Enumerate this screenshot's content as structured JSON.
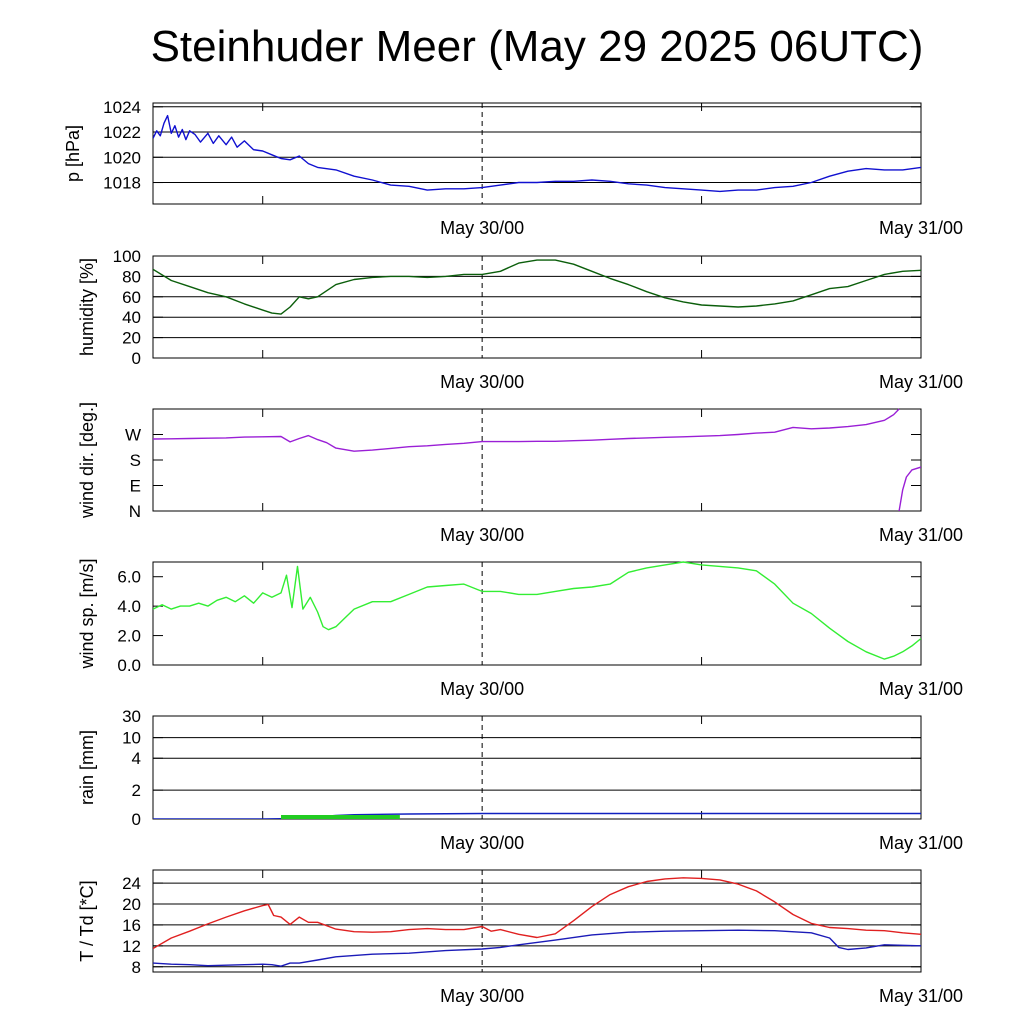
{
  "title": "Steinhuder Meer (May 29 2025 06UTC)",
  "colors": {
    "pressure": "#1010d0",
    "humidity": "#0b5e0b",
    "wind_dir": "#9a1fd6",
    "wind_speed": "#33ee33",
    "rain_total": "#1020c0",
    "rain_rate": "#22cc22",
    "temperature": "#e02020",
    "dewpoint": "#1b1bb8"
  },
  "chart_data": [
    {
      "type": "line",
      "id": "pressure",
      "ylabel": "p [hPa]",
      "x_range_hours": [
        0,
        42
      ],
      "ylim": [
        1016.3,
        1024.3
      ],
      "yticks": [
        1018,
        1020,
        1022,
        1024
      ],
      "ytick_labels": [
        "1018",
        "1020",
        "1022",
        "1024"
      ],
      "grid": "horizontal",
      "xtick_labels": [
        "May 30/00",
        "May 31/00"
      ],
      "series": [
        {
          "color_key": "pressure",
          "x": [
            0,
            0.2,
            0.4,
            0.6,
            0.8,
            1.0,
            1.2,
            1.4,
            1.6,
            1.8,
            2.0,
            2.3,
            2.6,
            3.0,
            3.3,
            3.6,
            4.0,
            4.3,
            4.6,
            5.0,
            5.5,
            6.0,
            6.5,
            7.0,
            7.5,
            8.0,
            8.5,
            9.0,
            10,
            11,
            12,
            13,
            14,
            15,
            16,
            17,
            18,
            19,
            20,
            21,
            22,
            23,
            24,
            25,
            26,
            27,
            28,
            29,
            30,
            31,
            32,
            33,
            34,
            35,
            36,
            37,
            38,
            39,
            40,
            41,
            42
          ],
          "y": [
            1021.5,
            1022.1,
            1021.7,
            1022.7,
            1023.3,
            1021.9,
            1022.5,
            1021.6,
            1022.2,
            1021.4,
            1022.1,
            1021.8,
            1021.2,
            1021.9,
            1021.1,
            1021.7,
            1021.0,
            1021.6,
            1020.8,
            1021.3,
            1020.6,
            1020.5,
            1020.2,
            1019.9,
            1019.8,
            1020.1,
            1019.5,
            1019.2,
            1019.0,
            1018.5,
            1018.2,
            1017.8,
            1017.7,
            1017.4,
            1017.5,
            1017.5,
            1017.6,
            1017.8,
            1018.0,
            1018.0,
            1018.1,
            1018.1,
            1018.2,
            1018.1,
            1017.9,
            1017.8,
            1017.6,
            1017.5,
            1017.4,
            1017.3,
            1017.4,
            1017.4,
            1017.6,
            1017.7,
            1018.0,
            1018.5,
            1018.9,
            1019.1,
            1019.0,
            1019.0,
            1019.2
          ]
        }
      ]
    },
    {
      "type": "line",
      "id": "humidity",
      "ylabel": "humidity [%]",
      "x_range_hours": [
        0,
        42
      ],
      "ylim": [
        0,
        100
      ],
      "yticks": [
        0,
        20,
        40,
        60,
        80,
        100
      ],
      "ytick_labels": [
        "0",
        "20",
        "40",
        "60",
        "80",
        "100"
      ],
      "grid": "horizontal",
      "xtick_labels": [
        "May 30/00",
        "May 31/00"
      ],
      "series": [
        {
          "color_key": "humidity",
          "x": [
            0,
            1,
            2,
            3,
            4,
            5,
            6,
            6.5,
            7.0,
            7.5,
            8.0,
            8.5,
            9.0,
            10,
            11,
            12,
            13,
            14,
            15,
            16,
            17,
            18,
            19,
            20,
            21,
            22,
            23,
            24,
            25,
            26,
            27,
            28,
            29,
            30,
            31,
            32,
            33,
            34,
            35,
            36,
            37,
            38,
            39,
            40,
            41,
            42
          ],
          "y": [
            87,
            76,
            70,
            64,
            60,
            53,
            47,
            44,
            43,
            50,
            60,
            58,
            60,
            72,
            77,
            79,
            80,
            80,
            79,
            80,
            82,
            82,
            85,
            93,
            96,
            96,
            92,
            85,
            78,
            72,
            65,
            59,
            55,
            52,
            51,
            50,
            51,
            53,
            56,
            62,
            68,
            70,
            76,
            82,
            85,
            86
          ]
        }
      ]
    },
    {
      "type": "line",
      "id": "wind_direction",
      "ylabel": "wind dir. [deg.]",
      "x_range_hours": [
        0,
        42
      ],
      "ylim": [
        0,
        360
      ],
      "yticks": [
        0,
        90,
        180,
        270
      ],
      "ytick_labels": [
        "N",
        "E",
        "S",
        "W"
      ],
      "grid": "none",
      "xtick_labels": [
        "May 30/00",
        "May 31/00"
      ],
      "series": [
        {
          "color_key": "wind_dir",
          "x": [
            0,
            1,
            2,
            3,
            4,
            5,
            6,
            7,
            7.5,
            8,
            8.5,
            9,
            9.5,
            10,
            11,
            12,
            13,
            14,
            15,
            16,
            17,
            18,
            19,
            20,
            21,
            22,
            23,
            24,
            25,
            26,
            27,
            28,
            29,
            30,
            31,
            32,
            33,
            34,
            35,
            36,
            37,
            38,
            39,
            40,
            40.5,
            40.8
          ],
          "y": [
            254,
            255,
            256,
            257,
            258,
            261,
            262,
            263,
            244,
            256,
            266,
            252,
            241,
            222,
            211,
            215,
            221,
            227,
            230,
            235,
            239,
            245,
            245,
            245,
            246,
            246,
            248,
            250,
            253,
            256,
            258,
            260,
            262,
            264,
            266,
            270,
            275,
            278,
            295,
            290,
            293,
            298,
            305,
            320,
            340,
            360
          ]
        },
        {
          "color_key": "wind_dir",
          "x": [
            40.8,
            41.0,
            41.2,
            41.5,
            42
          ],
          "y": [
            0,
            75,
            120,
            145,
            155
          ]
        }
      ]
    },
    {
      "type": "line",
      "id": "wind_speed",
      "ylabel": "wind sp. [m/s]",
      "x_range_hours": [
        0,
        42
      ],
      "ylim": [
        0,
        7.0
      ],
      "yticks": [
        0,
        2,
        4,
        6
      ],
      "ytick_labels": [
        "0.0",
        "2.0",
        "4.0",
        "6.0"
      ],
      "grid": "none",
      "xtick_labels": [
        "May 30/00",
        "May 31/00"
      ],
      "series": [
        {
          "color_key": "wind_speed",
          "x": [
            0,
            0.5,
            1,
            1.5,
            2,
            2.5,
            3,
            3.5,
            4,
            4.5,
            5,
            5.5,
            6,
            6.5,
            7,
            7.3,
            7.6,
            7.9,
            8.2,
            8.6,
            9,
            9.3,
            9.6,
            10,
            10.5,
            11,
            12,
            13,
            14,
            15,
            16,
            17,
            18,
            19,
            20,
            21,
            22,
            23,
            24,
            25,
            26,
            27,
            28,
            29,
            30,
            31,
            32,
            33,
            34,
            35,
            36,
            37,
            38,
            39,
            40,
            40.5,
            41,
            41.5,
            42
          ],
          "y": [
            3.8,
            4.1,
            3.8,
            4.0,
            4.0,
            4.2,
            4.0,
            4.4,
            4.6,
            4.3,
            4.7,
            4.2,
            4.9,
            4.6,
            4.9,
            6.1,
            3.9,
            6.7,
            3.8,
            4.6,
            3.6,
            2.6,
            2.4,
            2.6,
            3.2,
            3.8,
            4.3,
            4.3,
            4.8,
            5.3,
            5.4,
            5.5,
            5.0,
            5.0,
            4.8,
            4.8,
            5.0,
            5.2,
            5.3,
            5.5,
            6.3,
            6.6,
            6.8,
            7.0,
            6.8,
            6.7,
            6.6,
            6.4,
            5.5,
            4.2,
            3.5,
            2.5,
            1.6,
            0.9,
            0.4,
            0.6,
            0.9,
            1.3,
            1.8
          ]
        }
      ]
    },
    {
      "type": "line",
      "id": "rain",
      "ylabel": "rain [mm]",
      "x_range_hours": [
        0,
        42
      ],
      "ylim": [
        0,
        35
      ],
      "yticks": [
        0,
        2,
        4,
        10,
        30
      ],
      "ytick_labels": [
        "0",
        "2",
        "4",
        "10",
        "30"
      ],
      "grid": "horizontal",
      "xtick_labels": [
        "May 30/00",
        "May 31/00"
      ],
      "series": [
        {
          "color_key": "rain_total",
          "x": [
            0,
            6,
            7,
            8,
            9,
            10,
            11,
            12,
            14,
            18,
            24,
            30,
            36,
            42
          ],
          "y": [
            0,
            0,
            0.02,
            0.05,
            0.15,
            0.25,
            0.3,
            0.32,
            0.35,
            0.38,
            0.38,
            0.38,
            0.38,
            0.38
          ]
        },
        {
          "color_key": "rain_rate",
          "x": [
            7,
            13.5
          ],
          "y": [
            0.1,
            0.1
          ],
          "style": "bar"
        }
      ]
    },
    {
      "type": "line",
      "id": "temperature",
      "ylabel": "T / Td [*C]",
      "x_range_hours": [
        0,
        42
      ],
      "ylim": [
        7,
        26.5
      ],
      "yticks": [
        8,
        12,
        16,
        20,
        24
      ],
      "ytick_labels": [
        "8",
        "12",
        "16",
        "20",
        "24"
      ],
      "grid": "horizontal",
      "xtick_labels": [
        "May 30/00",
        "May 31/00"
      ],
      "series": [
        {
          "color_key": "temperature",
          "x": [
            0,
            1,
            2,
            3,
            4,
            5,
            6,
            6.3,
            6.6,
            7.0,
            7.5,
            8.0,
            8.5,
            9.0,
            10,
            11,
            12,
            13,
            14,
            15,
            16,
            17,
            18,
            18.5,
            19,
            20,
            21,
            22,
            23,
            24,
            25,
            26,
            27,
            28,
            29,
            30,
            31,
            32,
            33,
            34,
            35,
            36,
            37,
            38,
            39,
            40,
            41,
            42
          ],
          "y": [
            11.5,
            13.5,
            14.8,
            16.2,
            17.5,
            18.7,
            19.7,
            19.9,
            17.8,
            17.5,
            16.1,
            17.5,
            16.5,
            16.5,
            15.2,
            14.7,
            14.6,
            14.7,
            15.1,
            15.3,
            15.1,
            15.1,
            15.7,
            14.8,
            15.1,
            14.2,
            13.6,
            14.3,
            16.8,
            19.5,
            21.8,
            23.3,
            24.3,
            24.8,
            25.0,
            24.9,
            24.6,
            23.8,
            22.5,
            20.4,
            18.0,
            16.3,
            15.5,
            15.3,
            15.0,
            14.9,
            14.5,
            14.2
          ]
        },
        {
          "color_key": "dewpoint",
          "x": [
            0,
            1,
            2,
            3,
            4,
            5,
            6,
            6.5,
            7,
            7.5,
            8,
            9,
            10,
            12,
            14,
            16,
            18,
            19,
            20,
            22,
            24,
            26,
            28,
            30,
            32,
            34,
            36,
            37,
            37.5,
            38,
            39,
            40,
            41,
            42
          ],
          "y": [
            8.7,
            8.5,
            8.4,
            8.2,
            8.3,
            8.4,
            8.5,
            8.4,
            8.1,
            8.7,
            8.7,
            9.3,
            9.9,
            10.4,
            10.6,
            11.1,
            11.4,
            11.7,
            12.2,
            13.1,
            14.1,
            14.6,
            14.8,
            14.9,
            15.0,
            14.9,
            14.5,
            13.5,
            11.7,
            11.3,
            11.6,
            12.2,
            12.1,
            12.0
          ]
        }
      ]
    }
  ]
}
